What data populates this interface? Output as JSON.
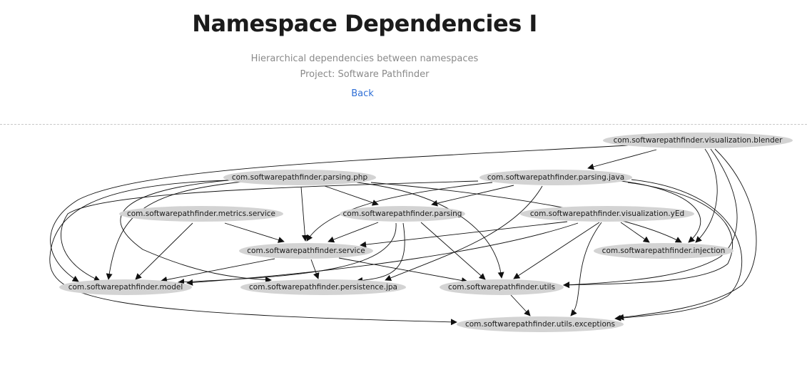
{
  "header": {
    "title": "Namespace Dependencies I",
    "subtitle": "Hierarchical dependencies between namespaces",
    "project": "Project: Software Pathfinder",
    "back_label": "Back"
  },
  "graph": {
    "nodes": [
      {
        "id": "visualization_blender",
        "label": "com.softwarepathfinder.visualization.blender"
      },
      {
        "id": "parsing_php",
        "label": "com.softwarepathfinder.parsing.php"
      },
      {
        "id": "parsing_java",
        "label": "com.softwarepathfinder.parsing.java"
      },
      {
        "id": "metrics_service",
        "label": "com.softwarepathfinder.metrics.service"
      },
      {
        "id": "parsing",
        "label": "com.softwarepathfinder.parsing"
      },
      {
        "id": "visualization_yed",
        "label": "com.softwarepathfinder.visualization.yEd"
      },
      {
        "id": "service",
        "label": "com.softwarepathfinder.service"
      },
      {
        "id": "injection",
        "label": "com.softwarepathfinder.injection"
      },
      {
        "id": "model",
        "label": "com.softwarepathfinder.model"
      },
      {
        "id": "persistence_jpa",
        "label": "com.softwarepathfinder.persistence.jpa"
      },
      {
        "id": "utils",
        "label": "com.softwarepathfinder.utils"
      },
      {
        "id": "utils_exceptions",
        "label": "com.softwarepathfinder.utils.exceptions"
      }
    ],
    "edges": [
      {
        "from": "visualization_blender",
        "to": "parsing_java"
      },
      {
        "from": "visualization_blender",
        "to": "injection"
      },
      {
        "from": "visualization_blender",
        "to": "utils"
      },
      {
        "from": "visualization_blender",
        "to": "utils_exceptions"
      },
      {
        "from": "visualization_blender",
        "to": "model"
      },
      {
        "from": "parsing_php",
        "to": "parsing"
      },
      {
        "from": "parsing_php",
        "to": "service"
      },
      {
        "from": "parsing_php",
        "to": "model"
      },
      {
        "from": "parsing_php",
        "to": "persistence_jpa"
      },
      {
        "from": "parsing_php",
        "to": "utils"
      },
      {
        "from": "parsing_php",
        "to": "injection"
      },
      {
        "from": "parsing_php",
        "to": "utils_exceptions"
      },
      {
        "from": "parsing_java",
        "to": "parsing"
      },
      {
        "from": "parsing_java",
        "to": "service"
      },
      {
        "from": "parsing_java",
        "to": "model"
      },
      {
        "from": "parsing_java",
        "to": "injection"
      },
      {
        "from": "parsing_java",
        "to": "utils"
      },
      {
        "from": "parsing_java",
        "to": "utils_exceptions"
      },
      {
        "from": "parsing_java",
        "to": "persistence_jpa"
      },
      {
        "from": "metrics_service",
        "to": "service"
      },
      {
        "from": "metrics_service",
        "to": "model"
      },
      {
        "from": "parsing",
        "to": "service"
      },
      {
        "from": "parsing",
        "to": "model"
      },
      {
        "from": "parsing",
        "to": "persistence_jpa"
      },
      {
        "from": "parsing",
        "to": "utils"
      },
      {
        "from": "visualization_yed",
        "to": "service"
      },
      {
        "from": "visualization_yed",
        "to": "injection"
      },
      {
        "from": "visualization_yed",
        "to": "utils"
      },
      {
        "from": "visualization_yed",
        "to": "model"
      },
      {
        "from": "visualization_yed",
        "to": "utils_exceptions"
      },
      {
        "from": "service",
        "to": "model"
      },
      {
        "from": "service",
        "to": "persistence_jpa"
      },
      {
        "from": "service",
        "to": "utils"
      },
      {
        "from": "utils",
        "to": "utils_exceptions"
      }
    ]
  }
}
